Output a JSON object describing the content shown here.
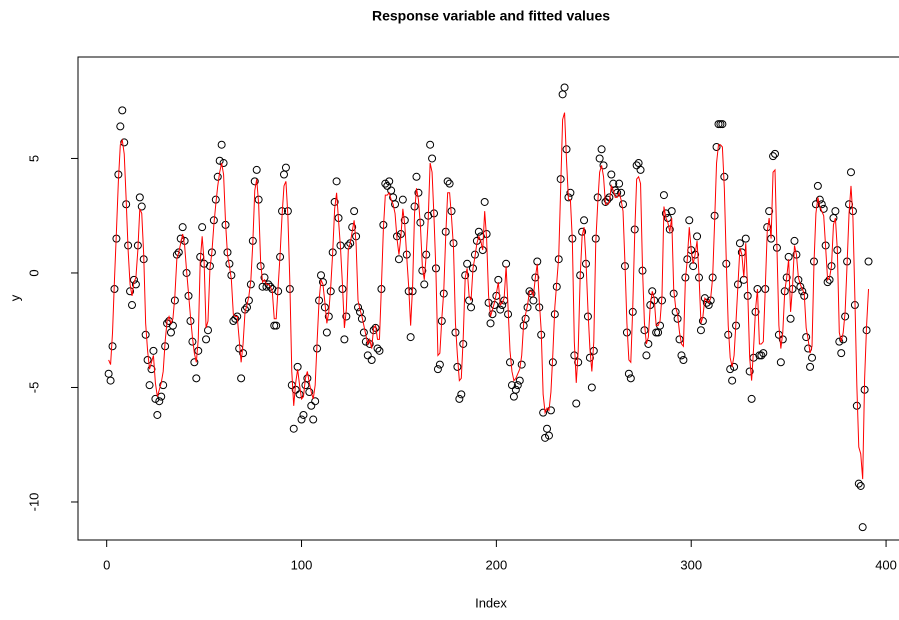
{
  "chart_data": {
    "type": "scatter",
    "title": "Response variable and fitted values",
    "x_label": "Index",
    "y_label": "y",
    "xlim": [
      -14.72,
      409.72
    ],
    "xticks": [
      0,
      100,
      200,
      300,
      400
    ],
    "ylim": [
      -11.66,
      9.43
    ],
    "yticks": [
      -10,
      -5,
      0,
      5
    ],
    "x": [
      1,
      2,
      3,
      4,
      5,
      6,
      7,
      8,
      9,
      10,
      11,
      12,
      13,
      14,
      15,
      16,
      17,
      18,
      19,
      20,
      21,
      22,
      23,
      24,
      25,
      26,
      27,
      28,
      29,
      30,
      31,
      32,
      33,
      34,
      35,
      36,
      37,
      38,
      39,
      40,
      41,
      42,
      43,
      44,
      45,
      46,
      47,
      48,
      49,
      50,
      51,
      52,
      53,
      54,
      55,
      56,
      57,
      58,
      59,
      60,
      61,
      62,
      63,
      64,
      65,
      66,
      67,
      68,
      69,
      70,
      71,
      72,
      73,
      74,
      75,
      76,
      77,
      78,
      79,
      80,
      81,
      82,
      83,
      84,
      85,
      86,
      87,
      88,
      89,
      90,
      91,
      92,
      93,
      94,
      95,
      96,
      97,
      98,
      99,
      100,
      101,
      102,
      103,
      104,
      105,
      106,
      107,
      108,
      109,
      110,
      111,
      112,
      113,
      114,
      115,
      116,
      117,
      118,
      119,
      120,
      121,
      122,
      123,
      124,
      125,
      126,
      127,
      128,
      129,
      130,
      131,
      132,
      133,
      134,
      135,
      136,
      137,
      138,
      139,
      140,
      141,
      142,
      143,
      144,
      145,
      146,
      147,
      148,
      149,
      150,
      151,
      152,
      153,
      154,
      155,
      156,
      157,
      158,
      159,
      160,
      161,
      162,
      163,
      164,
      165,
      166,
      167,
      168,
      169,
      170,
      171,
      172,
      173,
      174,
      175,
      176,
      177,
      178,
      179,
      180,
      181,
      182,
      183,
      184,
      185,
      186,
      187,
      188,
      189,
      190,
      191,
      192,
      193,
      194,
      195,
      196,
      197,
      198,
      199,
      200,
      201,
      202,
      203,
      204,
      205,
      206,
      207,
      208,
      209,
      210,
      211,
      212,
      213,
      214,
      215,
      216,
      217,
      218,
      219,
      220,
      221,
      222,
      223,
      224,
      225,
      226,
      227,
      228,
      229,
      230,
      231,
      232,
      233,
      234,
      235,
      236,
      237,
      238,
      239,
      240,
      241,
      242,
      243,
      244,
      245,
      246,
      247,
      248,
      249,
      250,
      251,
      252,
      253,
      254,
      255,
      256,
      257,
      258,
      259,
      260,
      261,
      262,
      263,
      264,
      265,
      266,
      267,
      268,
      269,
      270,
      271,
      272,
      273,
      274,
      275,
      276,
      277,
      278,
      279,
      280,
      281,
      282,
      283,
      284,
      285,
      286,
      287,
      288,
      289,
      290,
      291,
      292,
      293,
      294,
      295,
      296,
      297,
      298,
      299,
      300,
      301,
      302,
      303,
      304,
      305,
      306,
      307,
      308,
      309,
      310,
      311,
      312,
      313,
      314,
      315,
      316,
      317,
      318,
      319,
      320,
      321,
      322,
      323,
      324,
      325,
      326,
      327,
      328,
      329,
      330,
      331,
      332,
      333,
      334,
      335,
      336,
      337,
      338,
      339,
      340,
      341,
      342,
      343,
      344,
      345,
      346,
      347,
      348,
      349,
      350,
      351,
      352,
      353,
      354,
      355,
      356,
      357,
      358,
      359,
      360,
      361,
      362,
      363,
      364,
      365,
      366,
      367,
      368,
      369,
      370,
      371,
      372,
      373,
      374,
      375,
      376,
      377,
      378,
      379,
      380,
      381,
      382,
      383,
      384,
      385,
      386,
      387,
      388,
      389,
      390,
      391
    ],
    "series": [
      {
        "type": "scatter",
        "color": "#000000",
        "values": [
          -4.4,
          -4.7,
          -3.2,
          -0.7,
          1.5,
          4.3,
          6.4,
          7.1,
          5.7,
          3.0,
          1.2,
          -0.8,
          -1.4,
          -0.3,
          -0.5,
          1.2,
          3.3,
          2.9,
          0.6,
          -2.7,
          -3.8,
          -4.9,
          -4.2,
          -3.4,
          -5.5,
          -6.2,
          -5.6,
          -5.4,
          -4.9,
          -3.2,
          -2.2,
          -2.1,
          -2.6,
          -2.3,
          -1.2,
          0.8,
          0.9,
          1.5,
          2.0,
          1.4,
          0.0,
          -1.0,
          -2.1,
          -3.0,
          -3.9,
          -4.6,
          -3.4,
          0.7,
          2.0,
          0.4,
          -2.9,
          -2.5,
          0.3,
          0.9,
          2.3,
          3.2,
          4.2,
          4.9,
          5.6,
          4.8,
          2.1,
          0.9,
          0.4,
          -0.1,
          -2.1,
          -2.0,
          -1.9,
          -3.3,
          -4.6,
          -3.5,
          -1.6,
          -1.5,
          -1.2,
          -0.5,
          1.4,
          4.0,
          4.5,
          3.2,
          0.3,
          -0.6,
          -0.2,
          -0.6,
          -0.5,
          -0.6,
          -0.7,
          -2.3,
          -2.3,
          -0.8,
          0.7,
          2.7,
          4.3,
          4.6,
          2.7,
          -0.7,
          -4.9,
          -6.8,
          -5.1,
          -4.1,
          -5.3,
          -6.4,
          -6.2,
          -4.9,
          -4.6,
          -5.2,
          -5.8,
          -6.4,
          -5.6,
          -3.3,
          -1.2,
          -0.1,
          -0.4,
          -1.5,
          -2.6,
          -1.9,
          -0.8,
          0.9,
          3.1,
          4.0,
          2.4,
          1.2,
          -0.7,
          -2.9,
          -1.9,
          1.2,
          1.3,
          2.0,
          2.7,
          1.6,
          -1.5,
          -1.7,
          -2.0,
          -2.6,
          -3.0,
          -3.6,
          -3.1,
          -3.8,
          -2.5,
          -2.4,
          -3.3,
          -3.4,
          -0.7,
          2.1,
          3.9,
          3.8,
          4.0,
          3.6,
          3.3,
          3.0,
          1.6,
          0.6,
          1.7,
          3.2,
          2.3,
          0.8,
          -0.8,
          -2.8,
          -0.8,
          2.9,
          4.2,
          3.5,
          2.2,
          0.1,
          -0.5,
          0.8,
          2.5,
          5.6,
          5.0,
          2.6,
          0.2,
          -4.2,
          -4.0,
          -2.1,
          -0.9,
          1.8,
          4.0,
          3.9,
          2.7,
          1.3,
          -2.6,
          -4.1,
          -5.5,
          -5.3,
          -3.1,
          -0.1,
          0.4,
          -1.2,
          -1.5,
          0.2,
          0.8,
          1.4,
          1.8,
          1.6,
          1.0,
          3.1,
          1.7,
          -1.3,
          -2.2,
          -1.8,
          -1.4,
          -1.0,
          -0.3,
          -1.6,
          -1.4,
          -1.2,
          0.4,
          -1.8,
          -3.9,
          -4.9,
          -5.4,
          -5.1,
          -4.9,
          -4.7,
          -4.0,
          -2.3,
          -2.0,
          -1.5,
          -0.8,
          -0.9,
          -1.2,
          -0.2,
          0.5,
          -1.5,
          -2.7,
          -6.1,
          -7.2,
          -6.8,
          -7.1,
          -6.0,
          -3.9,
          -1.8,
          -0.6,
          0.6,
          4.1,
          7.8,
          8.1,
          5.4,
          3.3,
          3.5,
          1.5,
          -3.6,
          -5.7,
          -3.9,
          -0.1,
          1.8,
          2.3,
          0.4,
          -1.9,
          -3.7,
          -5.0,
          -3.4,
          1.5,
          3.3,
          5.0,
          5.4,
          4.7,
          3.1,
          3.2,
          3.3,
          4.3,
          3.9,
          3.6,
          3.5,
          3.9,
          3.5,
          3.0,
          0.3,
          -2.6,
          -4.4,
          -4.6,
          -1.7,
          1.9,
          4.7,
          4.8,
          4.5,
          0.1,
          -2.5,
          -3.6,
          -3.1,
          -1.4,
          -0.8,
          -1.2,
          -2.6,
          -2.6,
          -2.3,
          -1.2,
          3.4,
          2.6,
          2.4,
          1.9,
          2.7,
          -0.9,
          -1.7,
          -2.0,
          -2.9,
          -3.6,
          -3.8,
          -0.2,
          0.6,
          2.3,
          1.0,
          0.3,
          0.8,
          1.6,
          -0.2,
          -2.5,
          -2.1,
          -1.1,
          -1.3,
          -1.4,
          -1.2,
          -0.2,
          2.5,
          5.5,
          6.5,
          6.5,
          6.5,
          4.2,
          0.4,
          -2.7,
          -4.2,
          -4.7,
          -4.1,
          -2.3,
          -0.5,
          1.3,
          0.9,
          -0.3,
          1.5,
          -1.0,
          -4.3,
          -5.5,
          -3.7,
          -1.7,
          -0.7,
          -3.6,
          -3.6,
          -3.5,
          -0.7,
          2.0,
          2.7,
          1.5,
          5.1,
          5.2,
          1.1,
          -2.7,
          -3.9,
          -2.9,
          -0.8,
          -0.2,
          0.7,
          -2.0,
          -0.7,
          1.4,
          0.8,
          -0.3,
          -0.6,
          -0.8,
          -1.0,
          -2.8,
          -3.3,
          -4.1,
          -3.7,
          0.5,
          3.0,
          3.8,
          3.2,
          3.0,
          2.8,
          1.2,
          -0.4,
          -0.3,
          0.3,
          2.4,
          2.7,
          1.0,
          -3.0,
          -3.5,
          -2.9,
          -1.9,
          0.5,
          3.0,
          4.4,
          2.7,
          -1.4,
          -5.8,
          -9.2,
          -9.3,
          -11.1,
          -5.1,
          -2.5,
          0.5
        ]
      },
      {
        "type": "line",
        "color": "#ff0000",
        "values": [
          -3.8,
          -4.0,
          -2.6,
          -0.3,
          1.8,
          4.0,
          5.6,
          5.8,
          5.2,
          3.2,
          1.0,
          -0.5,
          -1.0,
          -0.4,
          -0.2,
          1.0,
          2.8,
          2.6,
          0.8,
          -2.2,
          -3.4,
          -4.2,
          -3.9,
          -3.6,
          -4.8,
          -5.4,
          -5.1,
          -4.8,
          -4.3,
          -3.0,
          -2.1,
          -1.9,
          -2.2,
          -2.0,
          -1.0,
          0.6,
          0.9,
          1.3,
          1.7,
          1.2,
          0.1,
          -0.9,
          -1.9,
          -2.8,
          -3.5,
          -3.9,
          -2.9,
          0.5,
          1.6,
          0.5,
          -2.4,
          -2.1,
          0.2,
          0.9,
          2.1,
          3.0,
          3.8,
          4.4,
          4.8,
          4.3,
          2.2,
          0.8,
          0.3,
          -0.3,
          -1.8,
          -1.9,
          -1.9,
          -2.9,
          -3.9,
          -3.1,
          -1.7,
          -1.4,
          -1.0,
          -0.3,
          1.3,
          3.6,
          4.1,
          3.0,
          0.5,
          -0.4,
          -0.3,
          -0.5,
          -0.5,
          -0.6,
          -0.8,
          -2.0,
          -2.0,
          -0.6,
          0.8,
          2.5,
          3.8,
          4.0,
          2.5,
          -0.4,
          -4.3,
          -5.8,
          -4.8,
          -4.2,
          -4.9,
          -5.5,
          -5.4,
          -4.6,
          -4.3,
          -4.8,
          -5.2,
          -5.5,
          -4.9,
          -3.0,
          -1.2,
          -0.3,
          -0.5,
          -1.3,
          -2.2,
          -1.7,
          -0.6,
          0.9,
          2.8,
          3.5,
          2.3,
          1.1,
          -0.5,
          -2.4,
          -1.6,
          1.0,
          1.3,
          1.8,
          2.3,
          1.3,
          -1.2,
          -1.6,
          -1.9,
          -2.3,
          -2.7,
          -3.1,
          -2.9,
          -3.3,
          -2.4,
          -2.3,
          -2.9,
          -2.9,
          -0.6,
          1.9,
          3.4,
          3.4,
          3.5,
          3.2,
          3.0,
          2.6,
          1.5,
          0.8,
          1.6,
          2.8,
          2.1,
          0.7,
          -0.6,
          -2.3,
          -0.6,
          2.6,
          3.7,
          3.2,
          2.1,
          0.3,
          -0.3,
          0.8,
          2.3,
          4.8,
          4.4,
          2.4,
          0.0,
          -3.6,
          -3.5,
          -2.0,
          -0.8,
          1.6,
          3.5,
          3.5,
          2.4,
          1.1,
          -2.2,
          -3.6,
          -4.7,
          -4.6,
          -2.8,
          -0.2,
          0.2,
          -1.0,
          -1.2,
          0.2,
          0.7,
          1.3,
          1.6,
          1.4,
          1.0,
          2.7,
          1.5,
          -1.0,
          -1.9,
          -1.6,
          -1.3,
          -0.9,
          -0.4,
          -1.4,
          -1.3,
          -1.1,
          0.3,
          -1.5,
          -3.4,
          -4.3,
          -4.7,
          -4.6,
          -4.4,
          -4.2,
          -3.6,
          -2.2,
          -1.8,
          -1.4,
          -0.8,
          -0.8,
          -1.0,
          -0.2,
          0.4,
          -1.2,
          -2.5,
          -5.3,
          -6.1,
          -5.9,
          -6.0,
          -5.2,
          -3.5,
          -1.5,
          -0.4,
          0.7,
          3.7,
          6.7,
          7.0,
          4.9,
          3.2,
          3.2,
          1.4,
          -3.0,
          -4.8,
          -3.4,
          -0.2,
          1.6,
          2.0,
          0.5,
          -1.6,
          -3.3,
          -4.3,
          -3.0,
          1.3,
          3.0,
          4.4,
          4.7,
          4.2,
          3.0,
          3.0,
          3.1,
          3.8,
          3.6,
          3.3,
          3.3,
          3.5,
          3.2,
          2.7,
          0.4,
          -2.2,
          -3.8,
          -3.9,
          -1.5,
          1.7,
          4.1,
          4.2,
          3.9,
          0.2,
          -2.2,
          -3.1,
          -2.8,
          -1.4,
          -0.8,
          -1.1,
          -2.3,
          -2.3,
          -2.1,
          -1.0,
          2.9,
          2.4,
          2.2,
          1.8,
          2.4,
          -0.7,
          -1.5,
          -1.8,
          -2.6,
          -3.1,
          -3.2,
          -0.3,
          0.6,
          2.0,
          1.0,
          0.4,
          0.8,
          1.4,
          -0.1,
          -2.2,
          -1.9,
          -1.1,
          -1.2,
          -1.3,
          -1.1,
          -0.2,
          2.2,
          4.8,
          5.6,
          5.6,
          5.5,
          3.7,
          0.5,
          -2.3,
          -3.7,
          -4.1,
          -3.6,
          -2.1,
          -0.5,
          1.1,
          0.8,
          -0.2,
          1.3,
          -0.8,
          -3.7,
          -4.7,
          -3.3,
          -1.6,
          -0.7,
          -3.1,
          -3.1,
          -3.0,
          -0.7,
          1.8,
          2.4,
          1.5,
          4.4,
          4.5,
          1.1,
          -2.3,
          -3.3,
          -2.6,
          -0.8,
          -0.2,
          0.6,
          -1.7,
          -0.6,
          1.2,
          0.8,
          -0.2,
          -0.5,
          -0.7,
          -0.9,
          -2.4,
          -2.9,
          -3.5,
          -3.2,
          0.4,
          2.6,
          3.3,
          2.9,
          2.7,
          2.5,
          1.1,
          -0.3,
          -0.2,
          0.3,
          2.1,
          2.4,
          1.0,
          -2.6,
          -3.0,
          -2.6,
          -1.7,
          0.4,
          2.6,
          3.8,
          2.4,
          -1.1,
          -4.9,
          -7.6,
          -7.9,
          -9.0,
          -4.6,
          -2.3,
          -0.7
        ]
      }
    ]
  }
}
